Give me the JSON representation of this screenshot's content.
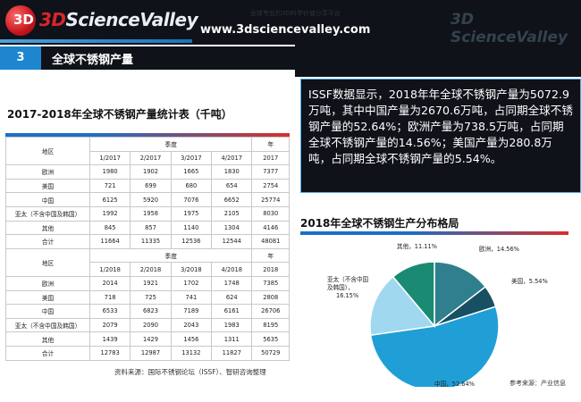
{
  "header": {
    "logo": {
      "badge": "3D",
      "brand_prefix": "3D",
      "brand_rest": "ScienceValley"
    },
    "url": "www.3dsciencevalley.com",
    "watermark": "全球专业的3D科学价值分享平台",
    "right_logo": "3D ScienceValley"
  },
  "section": {
    "number": "3",
    "title": "全球不锈钢产量"
  },
  "summary": {
    "text": "ISSF数据显示，2018年年全球不锈钢产量为5072.9万吨，其中中国产量为2670.6万吨，占同期全球不锈钢产量的52.64%；欧洲产量为738.5万吨，占同期全球不锈钢产量的14.56%；美国产量为280.8万吨，占同期全球不锈钢产量的5.54%。"
  },
  "table": {
    "title": "2017-2018年全球不锈钢产量统计表（千吨）",
    "blocks": [
      {
        "region_header": "地区",
        "quarter_header": "季度",
        "year_header": "年",
        "periods": [
          "1/2017",
          "2/2017",
          "3/2017",
          "4/2017",
          "2017"
        ],
        "rows": [
          {
            "region": "欧洲",
            "values": [
              "1980",
              "1902",
              "1665",
              "1830",
              "7377"
            ]
          },
          {
            "region": "美国",
            "values": [
              "721",
              "699",
              "680",
              "654",
              "2754"
            ]
          },
          {
            "region": "中国",
            "values": [
              "6125",
              "5920",
              "7076",
              "6652",
              "25774"
            ]
          },
          {
            "region": "亚太（不含中国及韩国）",
            "values": [
              "1992",
              "1958",
              "1975",
              "2105",
              "8030"
            ]
          },
          {
            "region": "其他",
            "values": [
              "845",
              "857",
              "1140",
              "1304",
              "4146"
            ]
          },
          {
            "region": "合计",
            "values": [
              "11664",
              "11335",
              "12536",
              "12544",
              "48081"
            ]
          }
        ]
      },
      {
        "region_header": "地区",
        "quarter_header": "季度",
        "year_header": "年",
        "periods": [
          "1/2018",
          "2/2018",
          "3/2018",
          "4/2018",
          "2018"
        ],
        "rows": [
          {
            "region": "欧洲",
            "values": [
              "2014",
              "1921",
              "1702",
              "1748",
              "7385"
            ]
          },
          {
            "region": "美国",
            "values": [
              "718",
              "725",
              "741",
              "624",
              "2808"
            ]
          },
          {
            "region": "中国",
            "values": [
              "6533",
              "6823",
              "7189",
              "6161",
              "26706"
            ]
          },
          {
            "region": "亚太（不含中国及韩国）",
            "values": [
              "2079",
              "2090",
              "2043",
              "1983",
              "8195"
            ]
          },
          {
            "region": "其他",
            "values": [
              "1439",
              "1429",
              "1456",
              "1311",
              "5635"
            ]
          },
          {
            "region": "合计",
            "values": [
              "12783",
              "12987",
              "13132",
              "11827",
              "50729"
            ]
          }
        ]
      }
    ],
    "source": "资料来源：国际不锈钢论坛（ISSF）、智研咨询整理"
  },
  "chart_data": {
    "type": "pie",
    "title": "2018年全球不锈钢生产分布格局",
    "slices": [
      {
        "label": "欧洲",
        "pct_label": "14.56%",
        "value": 14.56,
        "color": "#2f7f8f"
      },
      {
        "label": "美国",
        "pct_label": "5.54%",
        "value": 5.54,
        "color": "#184f63"
      },
      {
        "label": "中国",
        "pct_label": "52.64%",
        "value": 52.64,
        "color": "#1f9fd6"
      },
      {
        "label": "亚太（不含中国及韩国）",
        "pct_label": "16.15%",
        "value": 16.15,
        "color": "#9fd8ef"
      },
      {
        "label": "其他",
        "pct_label": "11.11%",
        "value": 11.11,
        "color": "#1b8a73"
      }
    ],
    "labels": {
      "europe": "欧洲，14.56%",
      "usa": "美国，5.54%",
      "china": "中国，52.64%",
      "asia_line1": "亚太（不含中国",
      "asia_line2": "及韩国），",
      "asia_line3": "16.15%",
      "other": "其他，11.11%"
    },
    "source": "参考来源：产业信息"
  }
}
